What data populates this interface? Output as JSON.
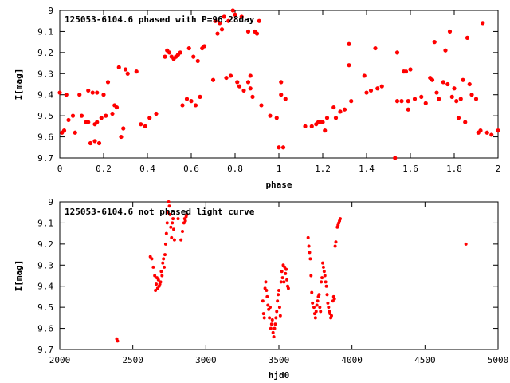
{
  "chart_data": [
    {
      "type": "scatter",
      "title": "125053-6104.6 phased with P=96.28day",
      "xlabel": "phase",
      "ylabel": "I[mag]",
      "xlim": [
        0,
        2
      ],
      "ylim": [
        9.7,
        9
      ],
      "y_inverted": true,
      "x_ticks": [
        0,
        0.2,
        0.4,
        0.6,
        0.8,
        1,
        1.2,
        1.4,
        1.6,
        1.8,
        2
      ],
      "y_ticks": [
        9,
        9.1,
        9.2,
        9.3,
        9.4,
        9.5,
        9.6,
        9.7
      ],
      "marker_color": "#ff0000",
      "grid": false,
      "series": [
        {
          "x": [
            0.0,
            0.01,
            0.02,
            0.03,
            0.04,
            0.06,
            0.07,
            0.09,
            0.1,
            0.12,
            0.13,
            0.13,
            0.14,
            0.15,
            0.16,
            0.16,
            0.17,
            0.17,
            0.18,
            0.19,
            0.2,
            0.21,
            0.22,
            0.24,
            0.25,
            0.26,
            0.27,
            0.28,
            0.29,
            0.3,
            0.31,
            0.35,
            0.37,
            0.39,
            0.41,
            0.44,
            0.48,
            0.49,
            0.5,
            0.51,
            0.52,
            0.53,
            0.54,
            0.55,
            0.56,
            0.58,
            0.59,
            0.6,
            0.61,
            0.62,
            0.63,
            0.64,
            0.65,
            0.66,
            0.7,
            0.71,
            0.72,
            0.73,
            0.74,
            0.75,
            0.76,
            0.77,
            0.78,
            0.79,
            0.8,
            0.81,
            0.82,
            0.83,
            0.84,
            0.86,
            0.86,
            0.87,
            0.87,
            0.88,
            0.89,
            0.9,
            0.91,
            0.92,
            0.96,
            0.99,
            1.0,
            1.01,
            1.01,
            1.02,
            1.03,
            1.12,
            1.15,
            1.17,
            1.18,
            1.19,
            1.2,
            1.21,
            1.22,
            1.25,
            1.26,
            1.28,
            1.3,
            1.32,
            1.32,
            1.33,
            1.39,
            1.4,
            1.42,
            1.44,
            1.45,
            1.47,
            1.53,
            1.54,
            1.54,
            1.56,
            1.57,
            1.58,
            1.59,
            1.59,
            1.6,
            1.62,
            1.65,
            1.67,
            1.69,
            1.7,
            1.71,
            1.72,
            1.73,
            1.75,
            1.76,
            1.77,
            1.78,
            1.79,
            1.8,
            1.81,
            1.82,
            1.83,
            1.84,
            1.85,
            1.86,
            1.87,
            1.88,
            1.9,
            1.91,
            1.92,
            1.93,
            1.95,
            1.97,
            2.0
          ],
          "y": [
            9.39,
            9.58,
            9.57,
            9.4,
            9.52,
            9.5,
            9.58,
            9.4,
            9.5,
            9.53,
            9.53,
            9.38,
            9.63,
            9.39,
            9.54,
            9.62,
            9.39,
            9.53,
            9.63,
            9.51,
            9.4,
            9.5,
            9.34,
            9.49,
            9.45,
            9.46,
            9.27,
            9.6,
            9.56,
            9.28,
            9.3,
            9.29,
            9.54,
            9.55,
            9.51,
            9.49,
            9.22,
            9.19,
            9.2,
            9.22,
            9.23,
            9.22,
            9.21,
            9.2,
            9.45,
            9.42,
            9.18,
            9.43,
            9.22,
            9.45,
            9.24,
            9.41,
            9.18,
            9.17,
            9.33,
            9.05,
            9.11,
            9.06,
            9.09,
            9.03,
            9.32,
            9.05,
            9.31,
            9.0,
            9.02,
            9.34,
            9.36,
            9.03,
            9.38,
            9.34,
            9.1,
            9.31,
            9.37,
            9.41,
            9.1,
            9.11,
            9.05,
            9.45,
            9.5,
            9.51,
            9.65,
            9.34,
            9.4,
            9.65,
            9.42,
            9.55,
            9.55,
            9.54,
            9.53,
            9.53,
            9.53,
            9.57,
            9.51,
            9.46,
            9.51,
            9.48,
            9.47,
            9.16,
            9.26,
            9.43,
            9.31,
            9.39,
            9.38,
            9.18,
            9.37,
            9.36,
            9.7,
            9.2,
            9.43,
            9.43,
            9.29,
            9.29,
            9.43,
            9.47,
            9.28,
            9.42,
            9.41,
            9.44,
            9.32,
            9.33,
            9.15,
            9.39,
            9.42,
            9.34,
            9.19,
            9.35,
            9.1,
            9.41,
            9.37,
            9.43,
            9.51,
            9.42,
            9.33,
            9.53,
            9.13,
            9.35,
            9.4,
            9.42,
            9.58,
            9.57,
            9.06,
            9.58,
            9.59,
            9.57
          ]
        }
      ]
    },
    {
      "type": "scatter",
      "title": "125053-6104.6 not phased light curve",
      "xlabel": "hjd0",
      "ylabel": "I[mag]",
      "xlim": [
        2000,
        5000
      ],
      "ylim": [
        9.7,
        9
      ],
      "y_inverted": true,
      "x_ticks": [
        2000,
        2500,
        3000,
        3500,
        4000,
        4500,
        5000
      ],
      "y_ticks": [
        9,
        9.1,
        9.2,
        9.3,
        9.4,
        9.5,
        9.6,
        9.7
      ],
      "marker_color": "#ff0000",
      "grid": false,
      "series": [
        {
          "x": [
            2390,
            2395,
            2620,
            2630,
            2640,
            2650,
            2655,
            2660,
            2665,
            2670,
            2675,
            2680,
            2685,
            2690,
            2695,
            2700,
            2705,
            2710,
            2715,
            2720,
            2725,
            2730,
            2735,
            2740,
            2745,
            2750,
            2755,
            2760,
            2765,
            2770,
            2775,
            2780,
            2785,
            2810,
            2830,
            2840,
            2850,
            2855,
            2860,
            2865,
            2870,
            3390,
            3395,
            3400,
            3405,
            3410,
            3415,
            3420,
            3425,
            3430,
            3435,
            3440,
            3445,
            3450,
            3455,
            3460,
            3465,
            3470,
            3475,
            3480,
            3485,
            3490,
            3495,
            3500,
            3505,
            3510,
            3515,
            3520,
            3525,
            3530,
            3535,
            3540,
            3545,
            3550,
            3555,
            3560,
            3565,
            3700,
            3705,
            3710,
            3715,
            3720,
            3725,
            3730,
            3740,
            3745,
            3750,
            3755,
            3760,
            3765,
            3770,
            3775,
            3780,
            3785,
            3790,
            3795,
            3800,
            3805,
            3810,
            3815,
            3820,
            3825,
            3830,
            3835,
            3840,
            3845,
            3850,
            3855,
            3860,
            3870,
            3875,
            3880,
            3885,
            3890,
            3900,
            3905,
            3910,
            3915,
            3920,
            4780
          ],
          "y": [
            9.65,
            9.66,
            9.26,
            9.27,
            9.31,
            9.35,
            9.42,
            9.39,
            9.36,
            9.41,
            9.37,
            9.4,
            9.39,
            9.38,
            9.33,
            9.35,
            9.29,
            9.27,
            9.31,
            9.25,
            9.2,
            9.15,
            9.1,
            9.05,
            9.0,
            9.02,
            9.06,
            9.12,
            9.17,
            9.1,
            9.08,
            9.13,
            9.18,
            9.08,
            9.18,
            9.14,
            9.1,
            9.08,
            9.09,
            9.07,
            9.06,
            9.47,
            9.53,
            9.55,
            9.41,
            9.38,
            9.42,
            9.45,
            9.49,
            9.51,
            9.55,
            9.5,
            9.6,
            9.58,
            9.56,
            9.62,
            9.64,
            9.6,
            9.58,
            9.55,
            9.52,
            9.47,
            9.44,
            9.42,
            9.5,
            9.54,
            9.38,
            9.33,
            9.36,
            9.3,
            9.38,
            9.31,
            9.34,
            9.32,
            9.37,
            9.4,
            9.41,
            9.17,
            9.21,
            9.24,
            9.27,
            9.35,
            9.43,
            9.48,
            9.5,
            9.53,
            9.55,
            9.52,
            9.49,
            9.47,
            9.45,
            9.44,
            9.5,
            9.52,
            9.38,
            9.36,
            9.29,
            9.31,
            9.33,
            9.35,
            9.38,
            9.4,
            9.44,
            9.48,
            9.5,
            9.52,
            9.53,
            9.55,
            9.54,
            9.47,
            9.45,
            9.46,
            9.21,
            9.19,
            9.12,
            9.11,
            9.1,
            9.09,
            9.08,
            9.2
          ]
        }
      ]
    }
  ]
}
